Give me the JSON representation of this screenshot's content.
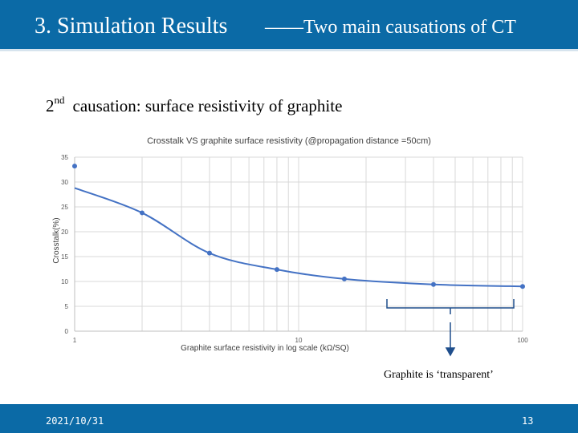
{
  "header": {
    "title": "3. Simulation Results",
    "subtitle": "——Two main causations of CT"
  },
  "slide": {
    "subtitle_prefix": "2",
    "subtitle_sup": "nd",
    "subtitle_text": "causation:  surface resistivity of graphite",
    "annotation": "Graphite is ‘transparent’"
  },
  "footer": {
    "date": "2021/10/31",
    "page": "13"
  },
  "colors": {
    "accent": "#0b6aa6",
    "series": "#4472c4"
  },
  "chart_data": {
    "type": "line",
    "title": "Crosstalk VS graphite surface resistivity (@propagation distance =50cm)",
    "xlabel": "Graphite surface resistivity in log scale (kΩ/SQ)",
    "ylabel": "Crosstalk(%)",
    "x_scale": "log",
    "xlim": [
      1,
      100
    ],
    "ylim": [
      0,
      35
    ],
    "x_ticks": [
      "1",
      "10",
      "100"
    ],
    "y_ticks": [
      "0",
      "5",
      "10",
      "15",
      "20",
      "25",
      "30",
      "35"
    ],
    "grid": true,
    "series": [
      {
        "x": [
          1,
          2,
          4,
          8,
          16,
          40,
          100
        ],
        "y": [
          33.2,
          23.8,
          15.7,
          12.4,
          10.5,
          9.4,
          9.0
        ]
      }
    ]
  }
}
